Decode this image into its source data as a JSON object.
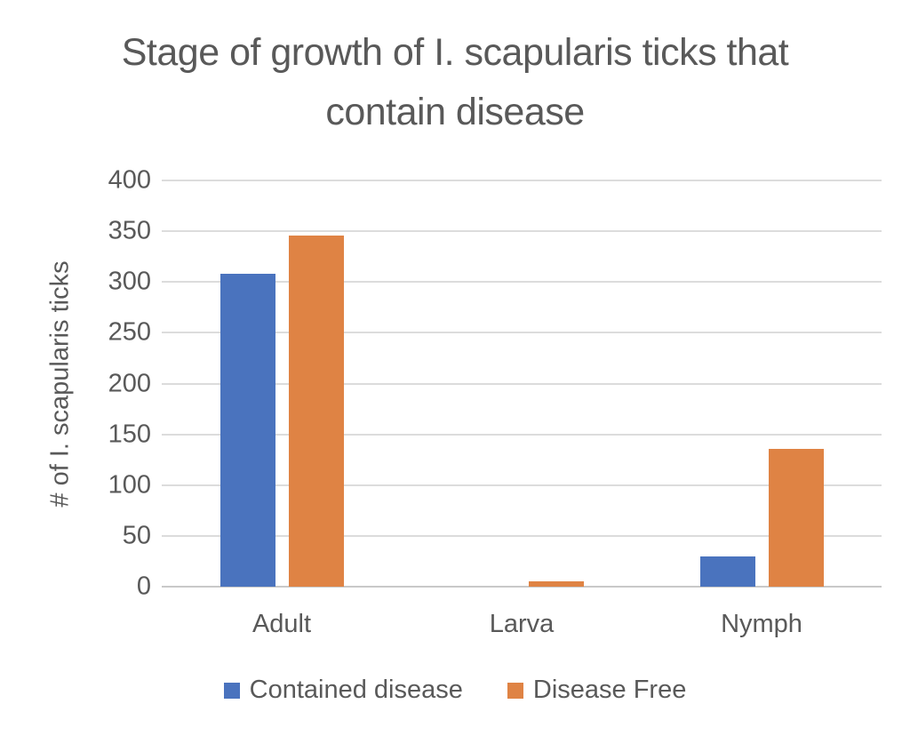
{
  "chart_data": {
    "type": "bar",
    "title": "Stage of growth of I. scapularis ticks that contain disease",
    "xlabel": "",
    "ylabel": "# of I. scapularis ticks",
    "categories": [
      "Adult",
      "Larva",
      "Nymph"
    ],
    "series": [
      {
        "name": "Contained disease",
        "color": "#4a73be",
        "values": [
          308,
          0,
          30
        ]
      },
      {
        "name": "Disease Free",
        "color": "#df8344",
        "values": [
          346,
          5,
          136
        ]
      }
    ],
    "ylim": [
      0,
      400
    ],
    "yticks": [
      0,
      50,
      100,
      150,
      200,
      250,
      300,
      350,
      400
    ],
    "grid": true,
    "legend_position": "bottom"
  },
  "style": {
    "text_color": "#595959",
    "gridline_color": "#dcdcdc",
    "baseline_color": "#c9c9c9",
    "background": "#ffffff"
  }
}
